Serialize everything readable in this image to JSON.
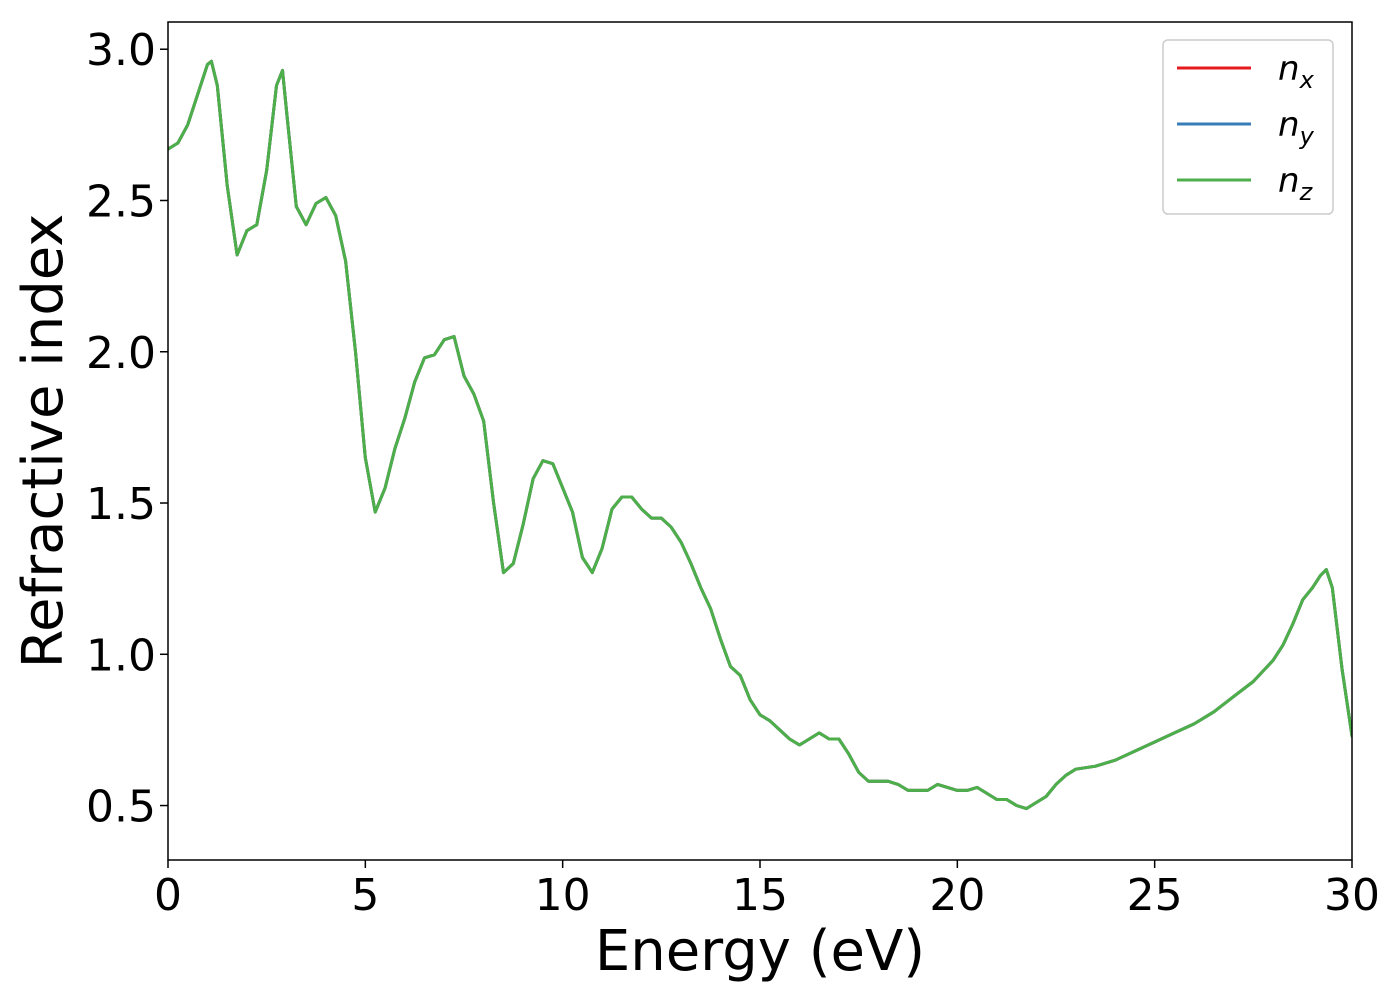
{
  "chart_data": {
    "type": "line",
    "xlabel": "Energy (eV)",
    "ylabel": "Refractive index",
    "xlim": [
      0,
      30
    ],
    "ylim": [
      0.32,
      3.09
    ],
    "xticks": [
      0,
      5,
      10,
      15,
      20,
      25,
      30
    ],
    "xtick_labels": [
      "0",
      "5",
      "10",
      "15",
      "20",
      "25",
      "30"
    ],
    "yticks": [
      0.5,
      1.0,
      1.5,
      2.0,
      2.5,
      3.0
    ],
    "ytick_labels": [
      "0.5",
      "1.0",
      "1.5",
      "2.0",
      "2.5",
      "3.0"
    ],
    "grid": false,
    "legend_position": "top-right",
    "series": [
      {
        "name": "n_x",
        "legend_base": "n",
        "legend_sub": "x",
        "color": "#e41a1c",
        "x": [
          0,
          0.25,
          0.5,
          0.75,
          1.0,
          1.1,
          1.25,
          1.5,
          1.75,
          2.0,
          2.25,
          2.5,
          2.75,
          2.9,
          3.0,
          3.25,
          3.5,
          3.75,
          4.0,
          4.25,
          4.5,
          4.75,
          5.0,
          5.25,
          5.5,
          5.75,
          6.0,
          6.25,
          6.5,
          6.75,
          7.0,
          7.25,
          7.5,
          7.75,
          8.0,
          8.25,
          8.5,
          8.75,
          9.0,
          9.25,
          9.5,
          9.75,
          10.0,
          10.25,
          10.5,
          10.75,
          11.0,
          11.25,
          11.5,
          11.75,
          12.0,
          12.25,
          12.5,
          12.75,
          13.0,
          13.25,
          13.5,
          13.75,
          14.0,
          14.25,
          14.5,
          14.75,
          15.0,
          15.25,
          15.5,
          15.75,
          16.0,
          16.25,
          16.5,
          16.75,
          17.0,
          17.25,
          17.5,
          17.75,
          18.0,
          18.25,
          18.5,
          18.75,
          19.0,
          19.25,
          19.5,
          19.75,
          20.0,
          20.25,
          20.5,
          20.75,
          21.0,
          21.25,
          21.5,
          21.75,
          22.0,
          22.25,
          22.5,
          22.75,
          23.0,
          23.5,
          24.0,
          24.5,
          25.0,
          25.5,
          26.0,
          26.5,
          27.0,
          27.5,
          28.0,
          28.25,
          28.5,
          28.75,
          29.0,
          29.2,
          29.35,
          29.5,
          29.75,
          30.0
        ],
        "y": [
          2.67,
          2.69,
          2.75,
          2.85,
          2.95,
          2.96,
          2.88,
          2.55,
          2.32,
          2.4,
          2.42,
          2.6,
          2.88,
          2.93,
          2.8,
          2.48,
          2.42,
          2.49,
          2.51,
          2.45,
          2.3,
          2.0,
          1.65,
          1.47,
          1.55,
          1.68,
          1.78,
          1.9,
          1.98,
          1.99,
          2.04,
          2.05,
          1.92,
          1.86,
          1.77,
          1.5,
          1.27,
          1.3,
          1.43,
          1.58,
          1.64,
          1.63,
          1.55,
          1.47,
          1.32,
          1.27,
          1.35,
          1.48,
          1.52,
          1.52,
          1.48,
          1.45,
          1.45,
          1.42,
          1.37,
          1.3,
          1.22,
          1.15,
          1.05,
          0.96,
          0.93,
          0.85,
          0.8,
          0.78,
          0.75,
          0.72,
          0.7,
          0.72,
          0.74,
          0.72,
          0.72,
          0.67,
          0.61,
          0.58,
          0.58,
          0.58,
          0.57,
          0.55,
          0.55,
          0.55,
          0.57,
          0.56,
          0.55,
          0.55,
          0.56,
          0.54,
          0.52,
          0.52,
          0.5,
          0.49,
          0.51,
          0.53,
          0.57,
          0.6,
          0.62,
          0.63,
          0.65,
          0.68,
          0.71,
          0.74,
          0.77,
          0.81,
          0.86,
          0.91,
          0.98,
          1.03,
          1.1,
          1.18,
          1.22,
          1.26,
          1.28,
          1.22,
          0.95,
          0.73
        ]
      },
      {
        "name": "n_y",
        "legend_base": "n",
        "legend_sub": "y",
        "color": "#377eb8",
        "x": [
          0,
          0.25,
          0.5,
          0.75,
          1.0,
          1.1,
          1.25,
          1.5,
          1.75,
          2.0,
          2.25,
          2.5,
          2.75,
          2.9,
          3.0,
          3.25,
          3.5,
          3.75,
          4.0,
          4.25,
          4.5,
          4.75,
          5.0,
          5.25,
          5.5,
          5.75,
          6.0,
          6.25,
          6.5,
          6.75,
          7.0,
          7.25,
          7.5,
          7.75,
          8.0,
          8.25,
          8.5,
          8.75,
          9.0,
          9.25,
          9.5,
          9.75,
          10.0,
          10.25,
          10.5,
          10.75,
          11.0,
          11.25,
          11.5,
          11.75,
          12.0,
          12.25,
          12.5,
          12.75,
          13.0,
          13.25,
          13.5,
          13.75,
          14.0,
          14.25,
          14.5,
          14.75,
          15.0,
          15.25,
          15.5,
          15.75,
          16.0,
          16.25,
          16.5,
          16.75,
          17.0,
          17.25,
          17.5,
          17.75,
          18.0,
          18.25,
          18.5,
          18.75,
          19.0,
          19.25,
          19.5,
          19.75,
          20.0,
          20.25,
          20.5,
          20.75,
          21.0,
          21.25,
          21.5,
          21.75,
          22.0,
          22.25,
          22.5,
          22.75,
          23.0,
          23.5,
          24.0,
          24.5,
          25.0,
          25.5,
          26.0,
          26.5,
          27.0,
          27.5,
          28.0,
          28.25,
          28.5,
          28.75,
          29.0,
          29.2,
          29.35,
          29.5,
          29.75,
          30.0
        ],
        "y": [
          2.67,
          2.69,
          2.75,
          2.85,
          2.95,
          2.96,
          2.88,
          2.55,
          2.32,
          2.4,
          2.42,
          2.6,
          2.88,
          2.93,
          2.8,
          2.48,
          2.42,
          2.49,
          2.51,
          2.45,
          2.3,
          2.0,
          1.65,
          1.47,
          1.55,
          1.68,
          1.78,
          1.9,
          1.98,
          1.99,
          2.04,
          2.05,
          1.92,
          1.86,
          1.77,
          1.5,
          1.27,
          1.3,
          1.43,
          1.58,
          1.64,
          1.63,
          1.55,
          1.47,
          1.32,
          1.27,
          1.35,
          1.48,
          1.52,
          1.52,
          1.48,
          1.45,
          1.45,
          1.42,
          1.37,
          1.3,
          1.22,
          1.15,
          1.05,
          0.96,
          0.93,
          0.85,
          0.8,
          0.78,
          0.75,
          0.72,
          0.7,
          0.72,
          0.74,
          0.72,
          0.72,
          0.67,
          0.61,
          0.58,
          0.58,
          0.58,
          0.57,
          0.55,
          0.55,
          0.55,
          0.57,
          0.56,
          0.55,
          0.55,
          0.56,
          0.54,
          0.52,
          0.52,
          0.5,
          0.49,
          0.51,
          0.53,
          0.57,
          0.6,
          0.62,
          0.63,
          0.65,
          0.68,
          0.71,
          0.74,
          0.77,
          0.81,
          0.86,
          0.91,
          0.98,
          1.03,
          1.1,
          1.18,
          1.22,
          1.26,
          1.28,
          1.22,
          0.95,
          0.73
        ]
      },
      {
        "name": "n_z",
        "legend_base": "n",
        "legend_sub": "z",
        "color": "#4daf4a",
        "x": [
          0,
          0.25,
          0.5,
          0.75,
          1.0,
          1.1,
          1.25,
          1.5,
          1.75,
          2.0,
          2.25,
          2.5,
          2.75,
          2.9,
          3.0,
          3.25,
          3.5,
          3.75,
          4.0,
          4.25,
          4.5,
          4.75,
          5.0,
          5.25,
          5.5,
          5.75,
          6.0,
          6.25,
          6.5,
          6.75,
          7.0,
          7.25,
          7.5,
          7.75,
          8.0,
          8.25,
          8.5,
          8.75,
          9.0,
          9.25,
          9.5,
          9.75,
          10.0,
          10.25,
          10.5,
          10.75,
          11.0,
          11.25,
          11.5,
          11.75,
          12.0,
          12.25,
          12.5,
          12.75,
          13.0,
          13.25,
          13.5,
          13.75,
          14.0,
          14.25,
          14.5,
          14.75,
          15.0,
          15.25,
          15.5,
          15.75,
          16.0,
          16.25,
          16.5,
          16.75,
          17.0,
          17.25,
          17.5,
          17.75,
          18.0,
          18.25,
          18.5,
          18.75,
          19.0,
          19.25,
          19.5,
          19.75,
          20.0,
          20.25,
          20.5,
          20.75,
          21.0,
          21.25,
          21.5,
          21.75,
          22.0,
          22.25,
          22.5,
          22.75,
          23.0,
          23.5,
          24.0,
          24.5,
          25.0,
          25.5,
          26.0,
          26.5,
          27.0,
          27.5,
          28.0,
          28.25,
          28.5,
          28.75,
          29.0,
          29.2,
          29.35,
          29.5,
          29.75,
          30.0
        ],
        "y": [
          2.67,
          2.69,
          2.75,
          2.85,
          2.95,
          2.96,
          2.88,
          2.55,
          2.32,
          2.4,
          2.42,
          2.6,
          2.88,
          2.93,
          2.8,
          2.48,
          2.42,
          2.49,
          2.51,
          2.45,
          2.3,
          2.0,
          1.65,
          1.47,
          1.55,
          1.68,
          1.78,
          1.9,
          1.98,
          1.99,
          2.04,
          2.05,
          1.92,
          1.86,
          1.77,
          1.5,
          1.27,
          1.3,
          1.43,
          1.58,
          1.64,
          1.63,
          1.55,
          1.47,
          1.32,
          1.27,
          1.35,
          1.48,
          1.52,
          1.52,
          1.48,
          1.45,
          1.45,
          1.42,
          1.37,
          1.3,
          1.22,
          1.15,
          1.05,
          0.96,
          0.93,
          0.85,
          0.8,
          0.78,
          0.75,
          0.72,
          0.7,
          0.72,
          0.74,
          0.72,
          0.72,
          0.67,
          0.61,
          0.58,
          0.58,
          0.58,
          0.57,
          0.55,
          0.55,
          0.55,
          0.57,
          0.56,
          0.55,
          0.55,
          0.56,
          0.54,
          0.52,
          0.52,
          0.5,
          0.49,
          0.51,
          0.53,
          0.57,
          0.6,
          0.62,
          0.63,
          0.65,
          0.68,
          0.71,
          0.74,
          0.77,
          0.81,
          0.86,
          0.91,
          0.98,
          1.03,
          1.1,
          1.18,
          1.22,
          1.26,
          1.28,
          1.22,
          0.95,
          0.73
        ]
      }
    ]
  }
}
